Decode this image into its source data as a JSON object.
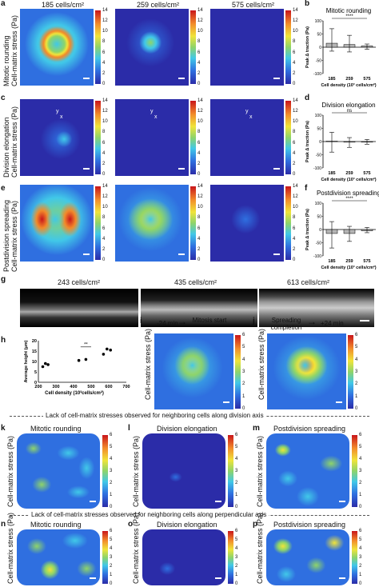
{
  "panels": {
    "a": "a",
    "b": "b",
    "c": "c",
    "d": "d",
    "e": "e",
    "f": "f",
    "g": "g",
    "h": "h",
    "i": "i",
    "j": "j",
    "k": "k",
    "l": "l",
    "m": "m",
    "n": "n",
    "o": "o",
    "p": "p"
  },
  "row_labels": {
    "mitotic": "Mitotic rounding",
    "division": "Division elongation",
    "postdivision": "Postdivision spreading",
    "stress_axis": "Cell-matrix stress (Pa)"
  },
  "densities": {
    "d1": "185 cells/cm²",
    "d2": "259 cells/cm²",
    "d3": "575 cells/cm²",
    "g1": "243 cells/cm²",
    "g2": "435 cells/cm²",
    "g3": "613 cells/cm²"
  },
  "colorbar_ticks_14": [
    "14",
    "12",
    "10",
    "8",
    "6",
    "4",
    "2",
    "0"
  ],
  "colorbar_ticks_6": [
    "6",
    "5",
    "4",
    "3",
    "2",
    "1",
    "0"
  ],
  "axis_glyphs": {
    "x": "x",
    "y": "y"
  },
  "i_panel": {
    "time": "-24 min",
    "event": "Mitosis start"
  },
  "j_panel": {
    "event": "Spreading completion",
    "time": "+24 min"
  },
  "lack_division": "Lack of cell-matrix stresses observed for neighboring cells along division axis",
  "lack_perpendicular": "Lack of cell-matrix stresses observed for neighboring cells along perpendicular axis",
  "sub_titles": {
    "k": "Mitotic rounding",
    "l": "Division elongation",
    "m": "Postdivision spreading",
    "n": "Mitotic rounding",
    "o": "Division elongation",
    "p": "Postdivision spreading"
  },
  "chart_data": [
    {
      "type": "bar",
      "panel": "b",
      "title": "Mitotic rounding",
      "categories": [
        "185",
        "259",
        "575"
      ],
      "values": [
        15,
        10,
        5
      ],
      "error_high": [
        70,
        45,
        12
      ],
      "error_low": [
        -15,
        -18,
        -8
      ],
      "ylabel": "Peak Δ traction (Pa)",
      "xlabel": "Cell density (10³ cells/cm²)",
      "ylim": [
        -100,
        100
      ],
      "yticks": [
        "100",
        "50",
        "0",
        "-50",
        "-100"
      ],
      "significance": "****"
    },
    {
      "type": "bar",
      "panel": "d",
      "title": "Division elongation",
      "categories": [
        "185",
        "259",
        "575"
      ],
      "values": [
        2,
        0,
        -2
      ],
      "error_high": [
        35,
        15,
        8
      ],
      "error_low": [
        -40,
        -22,
        -10
      ],
      "ylabel": "Peak Δ traction (Pa)",
      "xlabel": "Cell density (10³ cells/cm²)",
      "ylim": [
        -100,
        100
      ],
      "yticks": [
        "100",
        "50",
        "0",
        "-50",
        "-100"
      ],
      "significance": "ns"
    },
    {
      "type": "bar",
      "panel": "f",
      "title": "Postdivision spreading",
      "categories": [
        "185",
        "259",
        "575"
      ],
      "values": [
        -15,
        -15,
        -5
      ],
      "error_high": [
        30,
        12,
        8
      ],
      "error_low": [
        -70,
        -45,
        -12
      ],
      "ylabel": "Peak Δ traction (Pa)",
      "xlabel": "Cell density (10³ cells/cm²)",
      "ylim": [
        -100,
        100
      ],
      "yticks": [
        "100",
        "50",
        "0",
        "-50",
        "-100"
      ],
      "significance": "****"
    },
    {
      "type": "scatter",
      "panel": "h",
      "x": [
        225,
        240,
        255,
        430,
        470,
        570,
        590,
        610
      ],
      "y": [
        7.5,
        9,
        8.5,
        10.5,
        11,
        13.5,
        16,
        15.5
      ],
      "xlabel": "Cell density (10³cells/cm²)",
      "ylabel": "Average height (μm)",
      "xlim": [
        200,
        700
      ],
      "ylim": [
        0,
        20
      ],
      "xticks": [
        "200",
        "300",
        "400",
        "500",
        "600",
        "700"
      ],
      "yticks": [
        "0",
        "5",
        "10",
        "15",
        "20"
      ],
      "significance": "**"
    }
  ],
  "colors": {
    "bar_fill": "#b5b5b5",
    "cmap_low": "#2b2ca8",
    "cmap_high": "#c9151b"
  }
}
